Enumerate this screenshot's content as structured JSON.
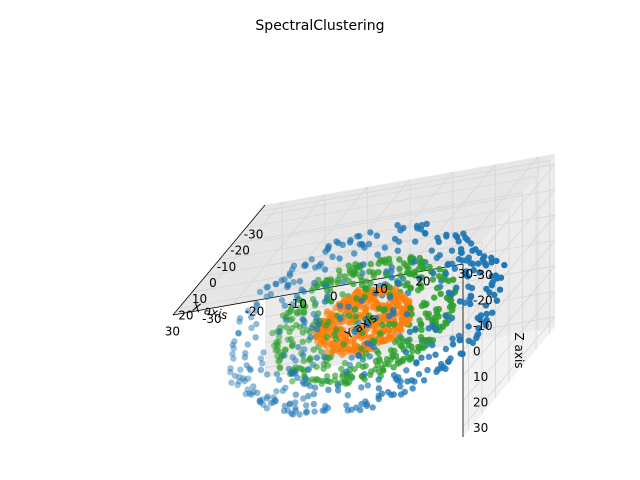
{
  "chart_data": {
    "type": "scatter3d",
    "title": "SpectralClustering",
    "xlabel": "X axis",
    "ylabel": "Y axis",
    "zlabel": "Z axis",
    "xlim": [
      -34,
      34
    ],
    "ylim": [
      -34,
      34
    ],
    "zlim": [
      -34,
      34
    ],
    "xticks": [
      -30,
      -20,
      -10,
      0,
      10,
      20,
      30
    ],
    "yticks": [
      -30,
      -20,
      -10,
      0,
      10,
      20,
      30
    ],
    "zticks": [
      -30,
      -20,
      -10,
      0,
      10,
      20,
      30
    ],
    "grid": true,
    "view": {
      "elev": 30,
      "azim": -60
    },
    "series": [
      {
        "color": "#1f77b4",
        "shape": "sphere",
        "radius": 30,
        "count": 420
      },
      {
        "color": "#2ca02c",
        "shape": "sphere",
        "radius": 20,
        "count": 420
      },
      {
        "color": "#ff7f0e",
        "shape": "sphere",
        "radius": 10,
        "count": 420
      }
    ]
  }
}
